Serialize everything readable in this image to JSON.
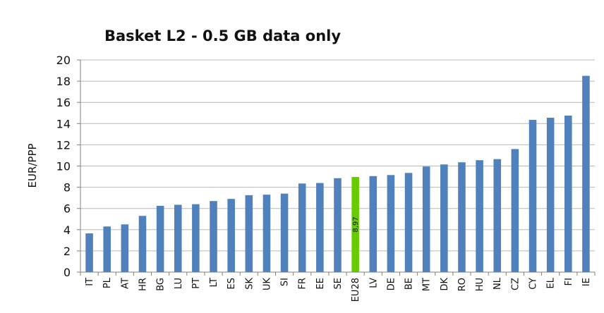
{
  "chart_data": {
    "type": "bar",
    "title": "Basket L2 - 0.5 GB data only",
    "xlabel": "",
    "ylabel": "EUR/PPP",
    "ylim": [
      0,
      20
    ],
    "yticks": [
      0,
      2,
      4,
      6,
      8,
      10,
      12,
      14,
      16,
      18,
      20
    ],
    "grid": true,
    "legend": "none",
    "categories": [
      "IT",
      "PL",
      "AT",
      "HR",
      "BG",
      "LU",
      "PT",
      "LT",
      "ES",
      "SK",
      "UK",
      "SI",
      "FR",
      "EE",
      "SE",
      "EU28",
      "LV",
      "DE",
      "BE",
      "MT",
      "DK",
      "RO",
      "HU",
      "NL",
      "CZ",
      "CY",
      "EL",
      "FI",
      "IE"
    ],
    "values": [
      3.65,
      4.3,
      4.5,
      5.3,
      6.25,
      6.35,
      6.4,
      6.7,
      6.9,
      7.25,
      7.3,
      7.4,
      8.35,
      8.4,
      8.85,
      8.97,
      9.05,
      9.15,
      9.35,
      9.95,
      10.15,
      10.35,
      10.55,
      10.65,
      11.6,
      14.35,
      14.55,
      14.75,
      18.5
    ],
    "highlight_category": "EU28",
    "highlight_label": "8,97",
    "colors": {
      "bar": "#4f81bd",
      "highlight": "#66cc00",
      "grid": "#b8b8b8",
      "axis": "#808080"
    }
  }
}
